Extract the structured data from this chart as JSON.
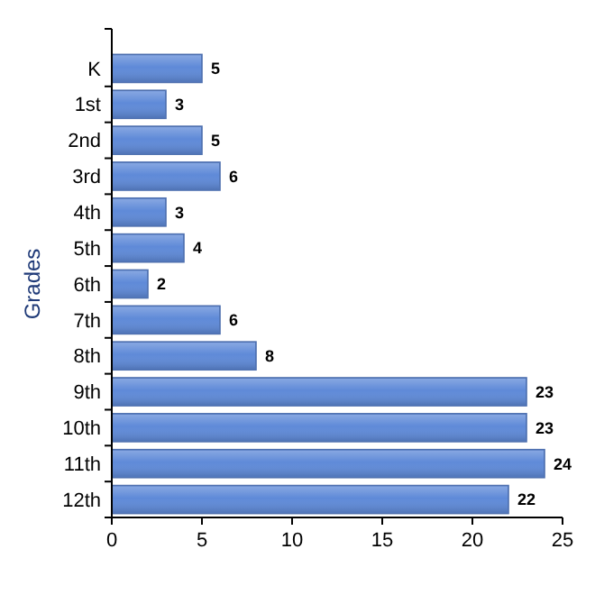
{
  "chart_data": {
    "type": "bar",
    "orientation": "horizontal",
    "ylabel": "Grades",
    "categories": [
      "K",
      "1st",
      "2nd",
      "3rd",
      "4th",
      "5th",
      "6th",
      "7th",
      "8th",
      "9th",
      "10th",
      "11th",
      "12th"
    ],
    "values": [
      5,
      3,
      5,
      6,
      3,
      4,
      2,
      6,
      8,
      23,
      23,
      24,
      22
    ],
    "color": "#5f8ad8",
    "xlim": [
      0,
      25
    ],
    "xticks": [
      0,
      5,
      10,
      15,
      20,
      25
    ],
    "data_labels": true,
    "grid": false
  }
}
